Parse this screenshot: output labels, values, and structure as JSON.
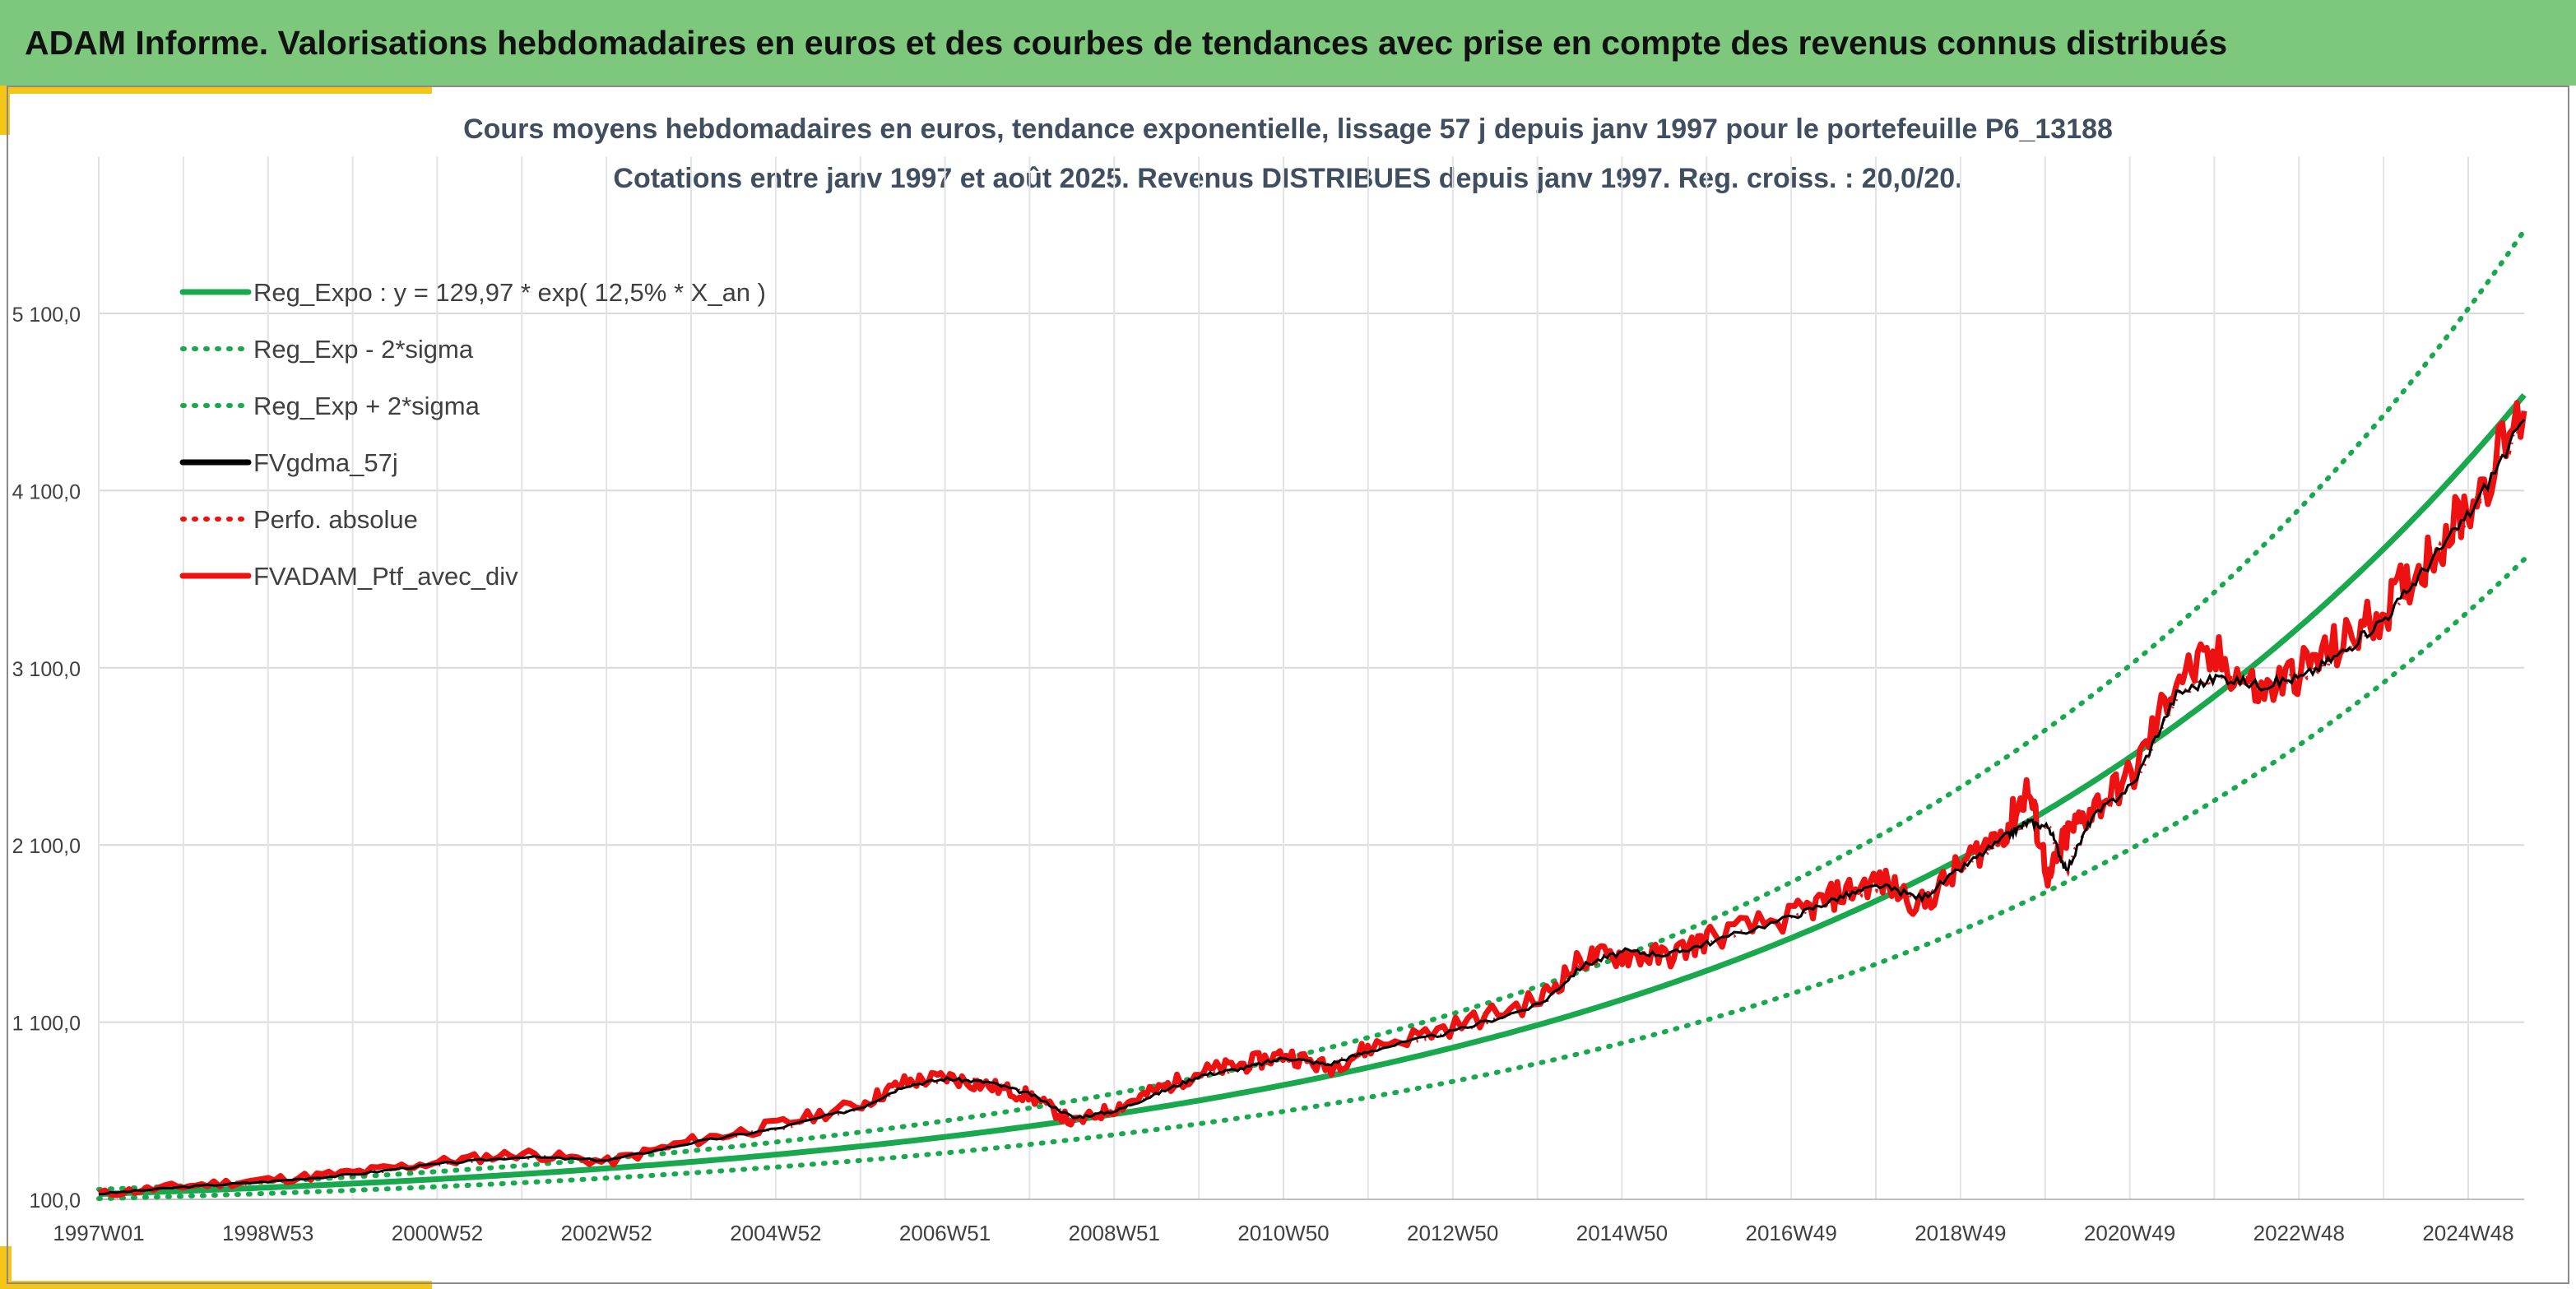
{
  "header": {
    "title": "ADAM Informe. Valorisations hebdomadaires en euros et des courbes de tendances avec prise en compte des revenus connus distribués"
  },
  "colors": {
    "banner": "#7ec87d",
    "accent": "#f5c518",
    "trend": "#1aa84f",
    "smooth": "#000000",
    "portfolio": "#ee1111"
  },
  "chart_data": {
    "type": "line",
    "title": "Cours moyens hebdomadaires en euros, tendance exponentielle, lissage 57 j depuis janv 1997 pour le portefeuille P6_13188",
    "subtitle": "Cotations entre janv 1997 et août 2025. Revenus DISTRIBUES depuis janv 1997. Reg. croiss. : 20,0/20.",
    "x_range": [
      "1997W01",
      "2025W34"
    ],
    "ylim": [
      100,
      5700
    ],
    "x_tick_labels": [
      "1997W01",
      "1998W53",
      "2000W52",
      "2002W52",
      "2004W52",
      "2006W51",
      "2008W51",
      "2010W50",
      "2012W50",
      "2014W50",
      "2016W49",
      "2018W49",
      "2020W49",
      "2022W48",
      "2024W48"
    ],
    "y_tick_labels": [
      "100,0",
      "1 100,0",
      "2 100,0",
      "3 100,0",
      "4 100,0",
      "5 100,0"
    ],
    "y_tick_values": [
      100,
      1100,
      2100,
      3100,
      4100,
      5100
    ],
    "grid": true,
    "legend_position": "top-left",
    "legend": [
      "Reg_Expo : y = 129,97 * exp( 12,5% *  X_an )",
      "Reg_Exp - 2*sigma",
      "Reg_Exp + 2*sigma",
      "FVgdma_57j",
      "Perfo. absolue",
      "FVADAM_Ptf_avec_div"
    ],
    "x": [
      1997.0,
      1998.0,
      1999.0,
      2000.0,
      2001.0,
      2002.0,
      2003.0,
      2004.0,
      2005.0,
      2006.0,
      2006.5,
      2007.0,
      2007.5,
      2008.0,
      2008.5,
      2009.0,
      2009.5,
      2010.0,
      2010.5,
      2011.0,
      2011.5,
      2012.0,
      2013.0,
      2014.0,
      2014.5,
      2015.0,
      2015.5,
      2016.0,
      2017.0,
      2017.5,
      2018.0,
      2018.5,
      2019.0,
      2019.5,
      2019.75,
      2020.0,
      2020.2,
      2020.5,
      2021.0,
      2021.5,
      2022.0,
      2022.5,
      2023.0,
      2023.5,
      2024.0,
      2024.5,
      2025.0,
      2025.6
    ],
    "series": [
      {
        "name": "Reg_Expo : y = 129,97 * exp( 12,5% *  X_an )",
        "style": "solid",
        "formula": "129.97*exp(0.125*X_an)"
      },
      {
        "name": "Reg_Exp - 2*sigma",
        "style": "dotted",
        "formula": "0.80*129.97*exp(0.125*X_an)"
      },
      {
        "name": "Reg_Exp + 2*sigma",
        "style": "dotted",
        "formula": "1.20*129.97*exp(0.125*X_an)"
      },
      {
        "name": "FVgdma_57j",
        "style": "solid",
        "values": [
          130,
          170,
          200,
          240,
          300,
          340,
          320,
          420,
          500,
          620,
          740,
          780,
          760,
          690,
          560,
          600,
          700,
          800,
          840,
          900,
          860,
          940,
          1050,
          1200,
          1420,
          1500,
          1480,
          1550,
          1700,
          1800,
          1870,
          1800,
          1980,
          2150,
          2230,
          2200,
          1950,
          2250,
          2450,
          2950,
          3050,
          3000,
          3050,
          3200,
          3400,
          3700,
          4000,
          4500
        ]
      },
      {
        "name": "Perfo. absolue",
        "style": "dotted",
        "values": [
          130,
          170,
          200,
          240,
          300,
          340,
          320,
          420,
          500,
          620,
          740,
          780,
          760,
          690,
          560,
          600,
          700,
          800,
          840,
          900,
          860,
          940,
          1050,
          1200,
          1420,
          1500,
          1480,
          1550,
          1700,
          1800,
          1870,
          1800,
          1980,
          2150,
          2230,
          2200,
          1950,
          2250,
          2450,
          2950,
          3050,
          3000,
          3050,
          3200,
          3400,
          3700,
          4000,
          4500
        ]
      },
      {
        "name": "FVADAM_Ptf_avec_div",
        "style": "solid",
        "values": [
          130,
          175,
          210,
          250,
          310,
          360,
          310,
          430,
          520,
          640,
          760,
          790,
          740,
          680,
          530,
          620,
          720,
          820,
          860,
          920,
          840,
          960,
          1080,
          1230,
          1460,
          1480,
          1470,
          1580,
          1700,
          1820,
          1900,
          1760,
          2000,
          2200,
          2420,
          1900,
          2150,
          2300,
          2500,
          3050,
          3150,
          2950,
          3100,
          3250,
          3450,
          3750,
          4050,
          4550
        ]
      }
    ]
  }
}
